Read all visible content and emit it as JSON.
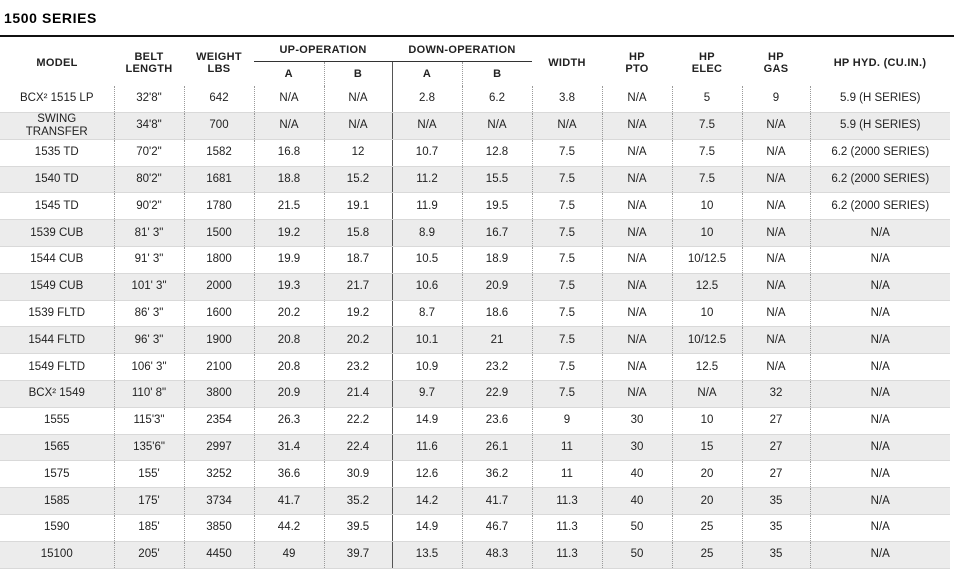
{
  "title": "1500 SERIES",
  "headers": {
    "model": "MODEL",
    "belt_length": [
      "BELT",
      "LENGTH"
    ],
    "weight": [
      "WEIGHT",
      "LBS"
    ],
    "up_operation": "UP-OPERATION",
    "down_operation": "DOWN-OPERATION",
    "sub_a": "A",
    "sub_b": "B",
    "width": "WIDTH",
    "hp_pto": [
      "HP",
      "PTO"
    ],
    "hp_elec": [
      "HP",
      "ELEC"
    ],
    "hp_gas": [
      "HP",
      "GAS"
    ],
    "hp_hyd": "HP HYD. (CU.IN.)"
  },
  "rows": [
    {
      "model": "BCX² 1515 LP",
      "belt": "32'8\"",
      "weight": "642",
      "up_a": "N/A",
      "up_b": "N/A",
      "down_a": "2.8",
      "down_b": "6.2",
      "width": "3.8",
      "pto": "N/A",
      "elec": "5",
      "gas": "9",
      "hyd": "5.9 (H SERIES)"
    },
    {
      "model": "SWING TRANSFER",
      "model_lines": [
        "SWING",
        "TRANSFER"
      ],
      "belt": "34'8\"",
      "weight": "700",
      "up_a": "N/A",
      "up_b": "N/A",
      "down_a": "N/A",
      "down_b": "N/A",
      "width": "N/A",
      "pto": "N/A",
      "elec": "7.5",
      "gas": "N/A",
      "hyd": "5.9 (H SERIES)"
    },
    {
      "model": "1535 TD",
      "belt": "70'2\"",
      "weight": "1582",
      "up_a": "16.8",
      "up_b": "12",
      "down_a": "10.7",
      "down_b": "12.8",
      "width": "7.5",
      "pto": "N/A",
      "elec": "7.5",
      "gas": "N/A",
      "hyd": "6.2 (2000 SERIES)"
    },
    {
      "model": "1540 TD",
      "belt": "80'2\"",
      "weight": "1681",
      "up_a": "18.8",
      "up_b": "15.2",
      "down_a": "11.2",
      "down_b": "15.5",
      "width": "7.5",
      "pto": "N/A",
      "elec": "7.5",
      "gas": "N/A",
      "hyd": "6.2 (2000 SERIES)"
    },
    {
      "model": "1545 TD",
      "belt": "90'2\"",
      "weight": "1780",
      "up_a": "21.5",
      "up_b": "19.1",
      "down_a": "11.9",
      "down_b": "19.5",
      "width": "7.5",
      "pto": "N/A",
      "elec": "10",
      "gas": "N/A",
      "hyd": "6.2 (2000 SERIES)"
    },
    {
      "model": "1539 CUB",
      "belt": "81' 3\"",
      "weight": "1500",
      "up_a": "19.2",
      "up_b": "15.8",
      "down_a": "8.9",
      "down_b": "16.7",
      "width": "7.5",
      "pto": "N/A",
      "elec": "10",
      "gas": "N/A",
      "hyd": "N/A"
    },
    {
      "model": "1544 CUB",
      "belt": "91' 3\"",
      "weight": "1800",
      "up_a": "19.9",
      "up_b": "18.7",
      "down_a": "10.5",
      "down_b": "18.9",
      "width": "7.5",
      "pto": "N/A",
      "elec": "10/12.5",
      "gas": "N/A",
      "hyd": "N/A"
    },
    {
      "model": "1549 CUB",
      "belt": "101' 3\"",
      "weight": "2000",
      "up_a": "19.3",
      "up_b": "21.7",
      "down_a": "10.6",
      "down_b": "20.9",
      "width": "7.5",
      "pto": "N/A",
      "elec": "12.5",
      "gas": "N/A",
      "hyd": "N/A"
    },
    {
      "model": "1539 FLTD",
      "belt": "86' 3\"",
      "weight": "1600",
      "up_a": "20.2",
      "up_b": "19.2",
      "down_a": "8.7",
      "down_b": "18.6",
      "width": "7.5",
      "pto": "N/A",
      "elec": "10",
      "gas": "N/A",
      "hyd": "N/A"
    },
    {
      "model": "1544 FLTD",
      "belt": "96' 3\"",
      "weight": "1900",
      "up_a": "20.8",
      "up_b": "20.2",
      "down_a": "10.1",
      "down_b": "21",
      "width": "7.5",
      "pto": "N/A",
      "elec": "10/12.5",
      "gas": "N/A",
      "hyd": "N/A"
    },
    {
      "model": "1549 FLTD",
      "belt": "106' 3\"",
      "weight": "2100",
      "up_a": "20.8",
      "up_b": "23.2",
      "down_a": "10.9",
      "down_b": "23.2",
      "width": "7.5",
      "pto": "N/A",
      "elec": "12.5",
      "gas": "N/A",
      "hyd": "N/A"
    },
    {
      "model": "BCX² 1549",
      "belt": "110' 8\"",
      "weight": "3800",
      "up_a": "20.9",
      "up_b": "21.4",
      "down_a": "9.7",
      "down_b": "22.9",
      "width": "7.5",
      "pto": "N/A",
      "elec": "N/A",
      "gas": "32",
      "hyd": "N/A"
    },
    {
      "model": "1555",
      "belt": "115'3\"",
      "weight": "2354",
      "up_a": "26.3",
      "up_b": "22.2",
      "down_a": "14.9",
      "down_b": "23.6",
      "width": "9",
      "pto": "30",
      "elec": "10",
      "gas": "27",
      "hyd": "N/A"
    },
    {
      "model": "1565",
      "belt": "135'6\"",
      "weight": "2997",
      "up_a": "31.4",
      "up_b": "22.4",
      "down_a": "11.6",
      "down_b": "26.1",
      "width": "11",
      "pto": "30",
      "elec": "15",
      "gas": "27",
      "hyd": "N/A"
    },
    {
      "model": "1575",
      "belt": "155'",
      "weight": "3252",
      "up_a": "36.6",
      "up_b": "30.9",
      "down_a": "12.6",
      "down_b": "36.2",
      "width": "11",
      "pto": "40",
      "elec": "20",
      "gas": "27",
      "hyd": "N/A"
    },
    {
      "model": "1585",
      "belt": "175'",
      "weight": "3734",
      "up_a": "41.7",
      "up_b": "35.2",
      "down_a": "14.2",
      "down_b": "41.7",
      "width": "11.3",
      "pto": "40",
      "elec": "20",
      "gas": "35",
      "hyd": "N/A"
    },
    {
      "model": "1590",
      "belt": "185'",
      "weight": "3850",
      "up_a": "44.2",
      "up_b": "39.5",
      "down_a": "14.9",
      "down_b": "46.7",
      "width": "11.3",
      "pto": "50",
      "elec": "25",
      "gas": "35",
      "hyd": "N/A"
    },
    {
      "model": "15100",
      "belt": "205'",
      "weight": "4450",
      "up_a": "49",
      "up_b": "39.7",
      "down_a": "13.5",
      "down_b": "48.3",
      "width": "11.3",
      "pto": "50",
      "elec": "25",
      "gas": "35",
      "hyd": "N/A"
    }
  ]
}
